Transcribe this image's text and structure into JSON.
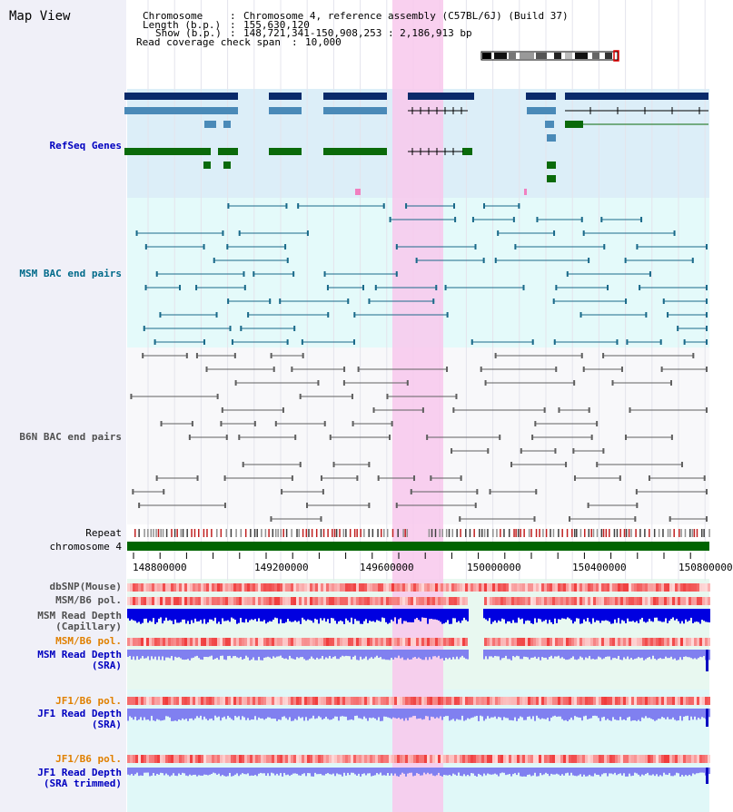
{
  "title": "Map View",
  "info": {
    "chromosome_label": "Chromosome",
    "chromosome_value": "Chromosome 4, reference assembly (C57BL/6J) (Build 37)",
    "length_label": "Length (b.p.)",
    "length_value": "155,630,120",
    "show_label": "Show (b.p.)",
    "show_value": "148,721,341-150,908,253 : 2,186,913 bp",
    "coverage_label": "Read coverage check span",
    "coverage_value": "10,000"
  },
  "tracks": {
    "refseq": "RefSeq Genes",
    "msm_bac": "MSM BAC end pairs",
    "b6n_bac": "B6N BAC end pairs",
    "repeat": "Repeat",
    "chromosome": "chromosome 4",
    "dbsnp": "dbSNP(Mouse)",
    "msm_pol": "MSM/B6 pol.",
    "msm_depth_cap": "MSM Read Depth\n(Capillary)",
    "msm_pol2": "MSM/B6 pol.",
    "msm_depth_sra": "MSM Read Depth\n(SRA)",
    "jf1_pol": "JF1/B6 pol.",
    "jf1_depth_sra": "JF1 Read Depth\n(SRA)",
    "jf1_pol2": "JF1/B6 pol.",
    "jf1_depth_trim": "JF1 Read Depth\n(SRA trimmed)"
  },
  "axis": {
    "ticks": [
      "148800000",
      "149200000",
      "149600000",
      "150000000",
      "150400000",
      "150800000"
    ]
  },
  "colors": {
    "refseq_label": "#0000c0",
    "msm_label": "#006a8a",
    "b6n_label": "#505050",
    "pol_orange": "#e08000",
    "depth_blue": "#0000c0",
    "highlight": "#f8c8ec"
  }
}
